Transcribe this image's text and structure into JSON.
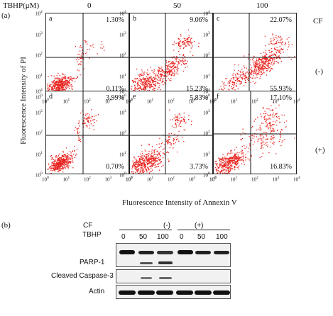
{
  "panel_a": {
    "letter": "(a)",
    "tbhp_header": "TBHP(μM)",
    "concentrations": [
      "0",
      "50",
      "100"
    ],
    "cf_header": "CF",
    "row_labels": [
      "(-)",
      "(+)"
    ],
    "y_axis_title": "Fluorescence Intensity of PI",
    "x_axis_title": "Fluorescence Intensity of Annexin V",
    "tick_base": "10",
    "tick_exponents": [
      "0",
      "1",
      "2",
      "3",
      "4"
    ],
    "plots": [
      {
        "label": "a",
        "upper_right": "1.30%",
        "lower_right": "0.11%"
      },
      {
        "label": "b",
        "upper_right": "9.06%",
        "lower_right": "15.23%"
      },
      {
        "label": "c",
        "upper_right": "22.07%",
        "lower_right": "55.93%"
      },
      {
        "label": "d",
        "upper_right": "3.99%",
        "lower_right": "0.70%"
      },
      {
        "label": "e",
        "upper_right": "5.83%",
        "lower_right": "3.73%"
      },
      {
        "label": "f",
        "upper_right": "17.10%",
        "lower_right": "16.83%"
      }
    ],
    "dot_color": "#e8231e"
  },
  "panel_b": {
    "letter": "(b)",
    "cf_label": "CF",
    "tbhp_label": "TBHP",
    "cf_groups": [
      "(-)",
      "(+)"
    ],
    "lanes": [
      "0",
      "50",
      "100",
      "0",
      "50",
      "100"
    ],
    "blot_labels": [
      "PARP-1",
      "Cleaved Caspase-3",
      "Actin"
    ]
  }
}
